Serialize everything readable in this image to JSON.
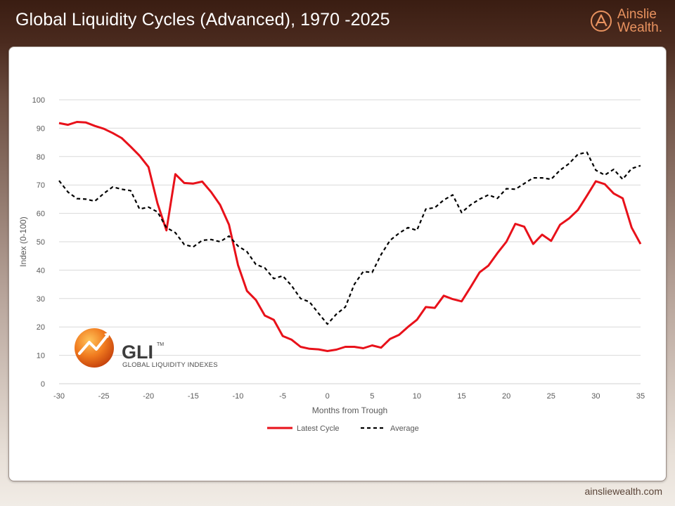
{
  "header": {
    "title": "Global Liquidity Cycles (Advanced), 1970 -2025",
    "brand_line1": "Ainslie",
    "brand_line2": "Wealth."
  },
  "footer": {
    "url": "ainsliewealth.com"
  },
  "logo": {
    "name": "GLI",
    "tm": "TM",
    "subtitle": "GLOBAL LIQUIDITY INDEXES"
  },
  "colors": {
    "latest": "#e8111a",
    "average": "#000000",
    "brand": "#e8925f",
    "header_bg": "#3a1d12"
  },
  "chart_data": {
    "type": "line",
    "title": "",
    "xlabel": "Months from Trough",
    "ylabel": "Index (0-100)",
    "xlim": [
      -30,
      35
    ],
    "ylim": [
      0,
      100
    ],
    "x_ticks": [
      -30,
      -25,
      -20,
      -15,
      -10,
      -5,
      0,
      5,
      10,
      15,
      20,
      25,
      30,
      35
    ],
    "y_ticks": [
      0,
      10,
      20,
      30,
      40,
      50,
      60,
      70,
      80,
      90,
      100
    ],
    "grid": true,
    "legend_position": "bottom",
    "series": [
      {
        "name": "Latest Cycle",
        "style": "solid",
        "x": [
          -30,
          -29,
          -28,
          -27,
          -26,
          -25,
          -24,
          -23,
          -22,
          -21,
          -20,
          -19,
          -18,
          -17,
          -16,
          -15,
          -14,
          -13,
          -12,
          -11,
          -10,
          -9,
          -8,
          -7,
          -6,
          -5,
          -4,
          -3,
          -2,
          -1,
          0,
          1,
          2,
          3,
          4,
          5,
          6,
          7,
          8,
          9,
          10,
          11,
          12,
          13,
          14,
          15,
          16,
          17,
          18,
          19,
          20,
          21,
          22,
          23,
          24,
          25,
          26,
          27,
          28,
          29,
          30,
          31,
          32,
          33,
          34,
          35
        ],
        "values": [
          91.8,
          91.2,
          92.2,
          92.0,
          90.8,
          89.8,
          88.3,
          86.5,
          83.5,
          80.3,
          76.3,
          63.5,
          54.0,
          73.8,
          70.7,
          70.5,
          71.2,
          67.5,
          63.0,
          56.0,
          41.8,
          32.7,
          29.5,
          24.0,
          22.5,
          16.8,
          15.5,
          13.0,
          12.3,
          12.1,
          11.5,
          12.0,
          13.0,
          13.0,
          12.5,
          13.5,
          12.7,
          15.8,
          17.2,
          20.0,
          22.5,
          27.0,
          26.7,
          31.0,
          29.8,
          29.0,
          34.0,
          39.2,
          41.6,
          46.0,
          50.0,
          56.3,
          55.3,
          49.2,
          52.5,
          50.3,
          56.0,
          58.2,
          61.2,
          66.2,
          71.3,
          70.3,
          67.0,
          65.3,
          55.0,
          49.2
        ]
      },
      {
        "name": "Average",
        "style": "dashed",
        "x": [
          -30,
          -29,
          -28,
          -27,
          -26,
          -25,
          -24,
          -23,
          -22,
          -21,
          -20,
          -19,
          -18,
          -17,
          -16,
          -15,
          -14,
          -13,
          -12,
          -11,
          -10,
          -9,
          -8,
          -7,
          -6,
          -5,
          -4,
          -3,
          -2,
          -1,
          0,
          1,
          2,
          3,
          4,
          5,
          6,
          7,
          8,
          9,
          10,
          11,
          12,
          13,
          14,
          15,
          16,
          17,
          18,
          19,
          20,
          21,
          22,
          23,
          24,
          25,
          26,
          27,
          28,
          29,
          30,
          31,
          32,
          33,
          34,
          35
        ],
        "values": [
          71.5,
          67.5,
          65.2,
          65.0,
          64.3,
          67.0,
          69.3,
          68.5,
          68.0,
          61.5,
          62.2,
          60.5,
          55.0,
          53.2,
          49.0,
          48.2,
          50.5,
          50.8,
          50.0,
          52.0,
          48.5,
          46.5,
          42.0,
          40.8,
          37.0,
          38.0,
          34.5,
          30.0,
          28.8,
          24.8,
          21.0,
          24.5,
          27.0,
          35.0,
          39.5,
          39.2,
          45.5,
          50.5,
          53.0,
          55.0,
          54.0,
          61.5,
          62.0,
          64.7,
          66.5,
          60.3,
          63.0,
          65.0,
          66.5,
          65.3,
          68.7,
          68.5,
          70.5,
          72.5,
          72.5,
          72.0,
          75.2,
          77.5,
          80.8,
          81.5,
          75.2,
          73.5,
          75.5,
          72.0,
          75.8,
          76.8
        ]
      }
    ]
  }
}
